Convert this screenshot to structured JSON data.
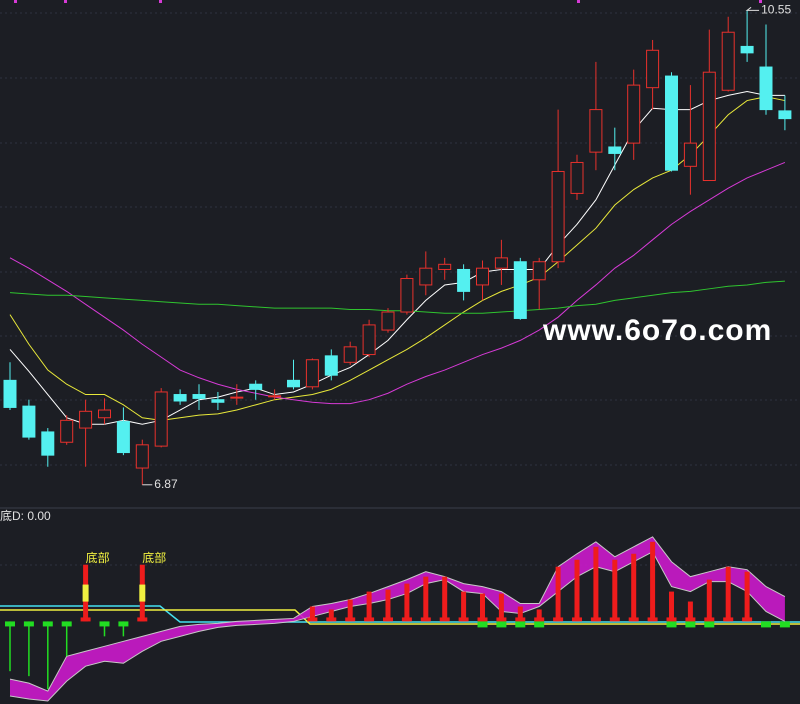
{
  "chart_data": [
    {
      "type": "candlestick",
      "up_color": "#e8312c",
      "down_color": "#54f0f0",
      "ylim": [
        6.69,
        10.63
      ],
      "open": [
        7.68,
        7.48,
        7.28,
        7.2,
        7.31,
        7.39,
        7.36,
        7.0,
        7.17,
        7.57,
        7.57,
        7.53,
        7.55,
        7.65,
        7.56,
        7.68,
        7.63,
        7.87,
        7.82,
        7.88,
        8.07,
        8.21,
        8.42,
        8.54,
        8.54,
        8.42,
        8.55,
        8.6,
        8.46,
        8.6,
        9.13,
        9.45,
        9.49,
        9.52,
        9.95,
        10.04,
        9.34,
        9.23,
        9.93,
        10.27,
        10.11,
        9.77
      ],
      "high": [
        7.82,
        7.53,
        7.31,
        7.41,
        7.53,
        7.54,
        7.47,
        7.22,
        7.62,
        7.61,
        7.65,
        7.59,
        7.65,
        7.68,
        7.61,
        7.84,
        7.85,
        7.92,
        7.98,
        8.15,
        8.24,
        8.5,
        8.68,
        8.63,
        8.58,
        8.61,
        8.77,
        8.63,
        8.63,
        9.78,
        9.43,
        10.15,
        9.64,
        10.09,
        10.32,
        10.07,
        9.97,
        10.4,
        10.5,
        10.55,
        10.44,
        9.89
      ],
      "low": [
        7.45,
        7.22,
        7.01,
        7.18,
        7.01,
        7.34,
        7.1,
        6.87,
        7.16,
        7.49,
        7.45,
        7.45,
        7.49,
        7.53,
        7.53,
        7.61,
        7.61,
        7.68,
        7.8,
        7.86,
        8.05,
        8.19,
        8.34,
        8.46,
        8.3,
        8.3,
        8.42,
        8.15,
        8.23,
        8.55,
        9.08,
        9.31,
        9.31,
        9.39,
        9.78,
        9.3,
        9.12,
        9.23,
        9.92,
        10.15,
        9.74,
        9.62
      ],
      "close": [
        7.47,
        7.24,
        7.1,
        7.37,
        7.44,
        7.45,
        7.12,
        7.18,
        7.59,
        7.52,
        7.54,
        7.51,
        7.55,
        7.61,
        7.56,
        7.63,
        7.84,
        7.72,
        7.94,
        8.11,
        8.21,
        8.47,
        8.55,
        8.58,
        8.37,
        8.55,
        8.63,
        8.16,
        8.6,
        9.3,
        9.37,
        9.78,
        9.44,
        9.97,
        10.24,
        9.31,
        9.52,
        10.07,
        10.38,
        10.22,
        9.78,
        9.71
      ],
      "series": [
        {
          "color": "#ffffff",
          "values": [
            7.92,
            7.75,
            7.57,
            7.39,
            7.34,
            7.34,
            7.37,
            7.34,
            7.37,
            7.45,
            7.53,
            7.55,
            7.59,
            7.62,
            7.57,
            7.59,
            7.65,
            7.72,
            7.78,
            7.88,
            7.99,
            8.15,
            8.3,
            8.42,
            8.44,
            8.52,
            8.54,
            8.54,
            8.54,
            8.73,
            8.89,
            9.08,
            9.35,
            9.62,
            9.79,
            9.78,
            9.78,
            9.85,
            9.89,
            9.92,
            9.89,
            9.89
          ]
        },
        {
          "color": "#e8e83a",
          "values": [
            8.19,
            7.96,
            7.76,
            7.65,
            7.57,
            7.57,
            7.49,
            7.39,
            7.37,
            7.39,
            7.41,
            7.42,
            7.45,
            7.49,
            7.53,
            7.55,
            7.57,
            7.61,
            7.68,
            7.76,
            7.84,
            7.92,
            8.01,
            8.11,
            8.21,
            8.3,
            8.37,
            8.42,
            8.48,
            8.6,
            8.73,
            8.86,
            9.04,
            9.16,
            9.25,
            9.31,
            9.43,
            9.58,
            9.74,
            9.85,
            9.88,
            9.85
          ]
        },
        {
          "color": "#d63ad6",
          "values": [
            8.63,
            8.55,
            8.46,
            8.37,
            8.27,
            8.17,
            8.07,
            7.96,
            7.86,
            7.76,
            7.7,
            7.65,
            7.61,
            7.58,
            7.55,
            7.53,
            7.51,
            7.5,
            7.5,
            7.53,
            7.58,
            7.65,
            7.71,
            7.76,
            7.82,
            7.88,
            7.93,
            7.99,
            8.07,
            8.17,
            8.3,
            8.42,
            8.55,
            8.65,
            8.77,
            8.89,
            8.99,
            9.08,
            9.17,
            9.25,
            9.31,
            9.37
          ]
        },
        {
          "color": "#2fc42f",
          "values": [
            8.36,
            8.35,
            8.34,
            8.34,
            8.33,
            8.32,
            8.31,
            8.3,
            8.29,
            8.28,
            8.27,
            8.27,
            8.26,
            8.25,
            8.24,
            8.24,
            8.24,
            8.24,
            8.23,
            8.23,
            8.22,
            8.22,
            8.21,
            8.2,
            8.2,
            8.2,
            8.21,
            8.22,
            8.23,
            8.24,
            8.26,
            8.27,
            8.3,
            8.32,
            8.34,
            8.36,
            8.37,
            8.39,
            8.41,
            8.42,
            8.44,
            8.45
          ]
        }
      ],
      "annotations": [
        {
          "text": "10.55",
          "value": 10.55
        },
        {
          "text": "6.87",
          "value": 6.87
        }
      ],
      "watermark": "www.6o7o.com"
    },
    {
      "type": "indicator",
      "title": "底D: 0.00",
      "ylim": [
        -83,
        112
      ],
      "up_color": "#ee1c1c",
      "down_color": "#22dd22",
      "band_color": "#cc1acc",
      "values": [
        -50,
        -55,
        -68,
        -35,
        57,
        -15,
        -15,
        57,
        null,
        null,
        null,
        null,
        null,
        null,
        null,
        null,
        15,
        12,
        22,
        30,
        32,
        38,
        45,
        45,
        30,
        28,
        28,
        15,
        12,
        55,
        62,
        75,
        62,
        68,
        80,
        30,
        20,
        42,
        55,
        50,
        null,
        null
      ],
      "signal_labels": [
        null,
        null,
        null,
        null,
        "底部",
        null,
        null,
        "底部",
        null,
        null,
        null,
        null,
        null,
        null,
        null,
        null,
        null,
        null,
        null,
        null,
        null,
        null,
        null,
        null,
        null,
        null,
        null,
        null,
        null,
        null,
        null,
        null,
        null,
        null,
        null,
        null,
        null,
        null,
        null,
        null,
        null,
        null
      ],
      "markers": [
        null,
        null,
        null,
        null,
        null,
        null,
        null,
        null,
        null,
        null,
        null,
        null,
        null,
        null,
        null,
        null,
        null,
        null,
        null,
        null,
        null,
        null,
        null,
        null,
        null,
        -6,
        -6,
        -6,
        -6,
        null,
        null,
        null,
        null,
        null,
        null,
        -6,
        -6,
        -6,
        null,
        null,
        -6,
        -6
      ],
      "band_upper": [
        -58,
        -62,
        -70,
        -35,
        -30,
        -25,
        -20,
        -15,
        -10,
        -5,
        -3,
        -2,
        0,
        1,
        2,
        3,
        15,
        18,
        22,
        28,
        35,
        42,
        50,
        45,
        38,
        35,
        30,
        18,
        18,
        55,
        68,
        80,
        65,
        75,
        85,
        60,
        45,
        50,
        55,
        52,
        35,
        25
      ],
      "band_lower": [
        -75,
        -78,
        -80,
        -60,
        -45,
        -40,
        -42,
        -30,
        -20,
        -15,
        -10,
        -6,
        -4,
        -3,
        -2,
        0,
        5,
        10,
        15,
        18,
        22,
        28,
        38,
        42,
        30,
        28,
        10,
        8,
        15,
        30,
        45,
        55,
        50,
        60,
        70,
        35,
        30,
        40,
        40,
        30,
        10,
        0
      ]
    }
  ]
}
